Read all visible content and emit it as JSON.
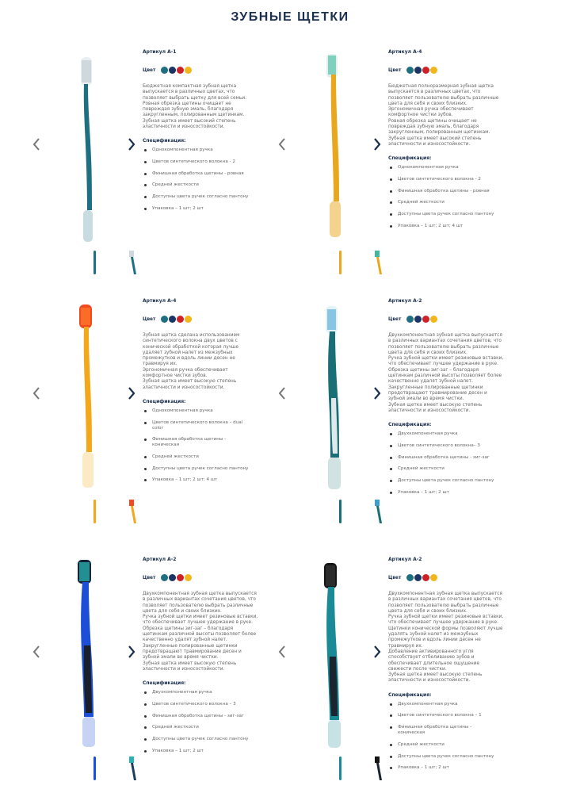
{
  "title": "ЗУБНЫЕ ЩЕТКИ",
  "color_label": "Цвет",
  "spec_label": "Спецификация:",
  "swatches": [
    "#1f6f83",
    "#1b3566",
    "#cf2128",
    "#f2b51c"
  ],
  "products": [
    {
      "sku": "Артикул А-1",
      "description": "Бюджетная компактная зубная щетка\nвыпускается в различных цветах, что\nпозволяет выбрать щетку для всей семьи.\nРовная обрезка щетины очищает не\nповреждая зубную эмаль, благодаря\nзакругленным, полированным щетинкам.\nЗубная щетка имеет высокий степень\nэластичности и износостойкости.",
      "specs": [
        "Однокомпонентная ручка",
        "Цветов синтетического волокна - 2",
        "Финишная обработка щетины - ровная",
        "Средней жесткости",
        "Доступны цвета ручек согласно пантону",
        "Упаковка – 1 шт; 2 шт"
      ]
    },
    {
      "sku": "Артикул А-4",
      "description": "Бюджетная полноразмерная зубная щетка\nвыпускается в различных цветах, что\nпозволяет пользователю выбрать различные\nцвета для себя и своих близких.\nЭргономичная ручка обеспечивает\nкомфортное чистки зубов.\nРовная обрезка щетины очищает не\nповреждая зубную эмаль, благодаря\nзакругленным, полированным щетинкам.\nЗубная щетка имеет высокий степень\nэластичности и износостойкости.",
      "specs": [
        "Однокомпонентная ручка",
        "Цветов синтетического волокна - 2",
        "Финишная обработка щетины - ровная",
        "Средней жесткости",
        "Доступны цвета ручек согласно пантону",
        "Упаковка – 1 шт; 2 шт; 4 шт"
      ]
    },
    {
      "sku": "Артикул А-4",
      "description": "Зубная щетка сделана использованием\nсинтетического волокна двух цветов с\nконической обработкой которая лучше\nудаляет зубной налет из межзубных\nпромежутков и вдоль линии десен не\nтравмируя их.\nЭргономичная ручка обеспечивает\nкомфортное чистки зубов.\nЗубная щетка имеет высокую степень\nэластичности и износостойкости.",
      "specs": [
        "Однокомпонентная ручка",
        "Цветов синтетического волокна – dual color",
        "Финишная обработка щетины - коническая",
        "Средней жесткости",
        "Доступны цвета ручек согласно пантону",
        "Упаковка – 1 шт; 2 шт; 4 шт"
      ]
    },
    {
      "sku": "Артикул А-2",
      "description": "Двухкомпонентная зубная щетка выпускается\nв различных вариантах сочетания цветов, что\nпозволяет пользователю выбрать различные\nцвета для себя и своих близких.\nРучка зубной щетки имеет резиновые вставки,\nчто обеспечивает лучшее удержание в руке.\nОбрезка щетины зиг-заг – благодаря\nщетинкам различной высоты позволяет более\nкачественно удалят зубной налет.\nЗакругленные полированные щетинки\nпредотвращают травмирование десен и\nзубной эмали во время чистки.\nЗубная щетка имеет высокую степень\nэластичности и износостойкости.",
      "specs": [
        "Двухкомпонентная ручка",
        "Цветов синтетического волокна– 3",
        "Финишная обработка щетины - зиг-заг",
        "Средней жесткости",
        "Доступны цвета ручек согласно пантону",
        "Упаковка – 1 шт; 2 шт"
      ]
    },
    {
      "sku": "Артикул А-2",
      "description": "Двухкомпонентная зубная щетка выпускается\nв различных вариантах сочетания цветов, что\nпозволяет пользователю выбрать различные\nцвета для себя и своих близких.\nРучка зубной щетки имеет резиновые вставки,\nчто обеспечивает лучшее удержание в руке.\nОбрезка щетины зиг-заг – благодаря\nщетинкам различной высоты позволяет более\nкачественно удалят зубной налет.\nЗакругленные полированные щетинки\nпредотвращают травмирование десен и\nзубной эмали во время чистки.\nЗубная щетка имеет высокую степень\nэластичности и износостойкости.",
      "specs": [
        "Двухкомпонентная ручка",
        "Цветов синтетического волокна – 3",
        "Финишная обработка щетины - зиг-заг",
        "Средней жесткости",
        "Доступны цвета ручек согласно пантону",
        "Упаковка – 1 шт; 2 шт"
      ]
    },
    {
      "sku": "Артикул А-2",
      "description": "Двухкомпонентная зубная щетка выпускается\nв различных вариантах сочетания цветов, что\nпозволяет пользователю выбрать различные\nцвета для себя и своих близких.\nРучка зубной щетки имеет резиновые вставки,\nчто обеспечивает лучшее удержание в руке.\nЩетинки конической формы позволяют лучше\nудалять зубной налет из межзубных\nпромежутков и вдоль линии десен не\nтравмируя их.\nДобавление активированного угля\nспособствует отбеливанию зубов и\nобеспечивает длительное ощущение\nсвежести после чистки.\nЗубная щетка имеет высокую степень\nэластичности и износостойкости.",
      "specs": [
        "Двухкомпонентная ручка",
        "Цветов синтетического волокна – 1",
        "Финишная обработка щетины - коническая",
        "Средней жесткости",
        "Доступны цвета ручек согласно пантону",
        "Упаковка – 1 шт; 2 шт"
      ]
    }
  ]
}
